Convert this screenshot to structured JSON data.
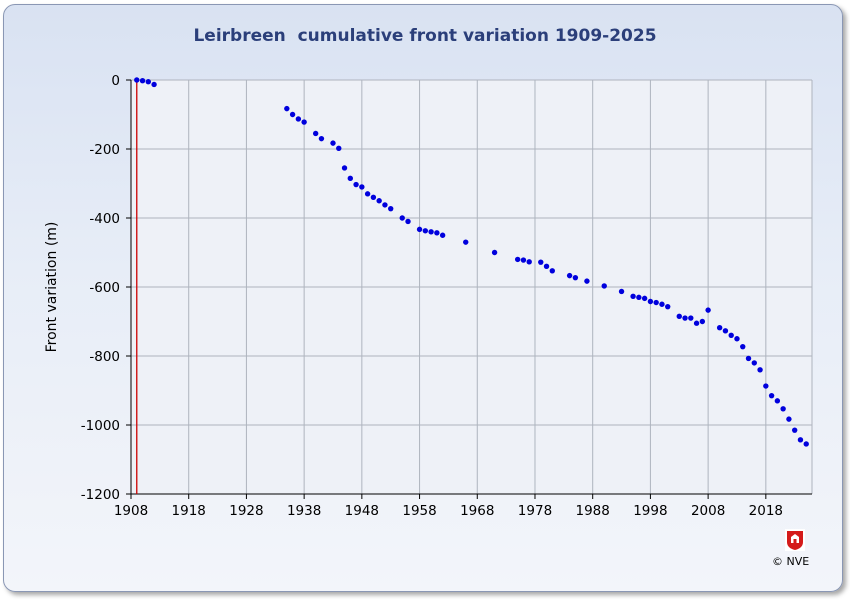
{
  "chart_data": {
    "type": "scatter",
    "title": "Leirbreen  cumulative front variation 1909-2025",
    "xlabel": "",
    "ylabel": "Front variation (m)",
    "xlim": [
      1908,
      2026
    ],
    "ylim": [
      -1200,
      0
    ],
    "x_ticks": [
      "1908",
      "1918",
      "1928",
      "1938",
      "1948",
      "1958",
      "1968",
      "1978",
      "1988",
      "1998",
      "2008",
      "2018"
    ],
    "y_ticks": [
      "0",
      "-200",
      "-400",
      "-600",
      "-800",
      "-1000",
      "-1200"
    ],
    "grid": true,
    "reference_line_x": 1909,
    "colors": {
      "points": "#0000dd",
      "reference_line": "#cc0000",
      "grid": "#aeb4be"
    },
    "series": [
      {
        "x": [
          1909,
          1910,
          1911,
          1912,
          1935,
          1936,
          1937,
          1938,
          1940,
          1941,
          1943,
          1944,
          1945,
          1946,
          1947,
          1948,
          1949,
          1950,
          1951,
          1952,
          1953,
          1955,
          1956,
          1958,
          1959,
          1960,
          1961,
          1962,
          1966,
          1971,
          1975,
          1976,
          1977,
          1979,
          1980,
          1981,
          1984,
          1985,
          1987,
          1990,
          1993,
          1995,
          1996,
          1997,
          1998,
          1999,
          2000,
          2001,
          2003,
          2004,
          2005,
          2006,
          2007,
          2008,
          2010,
          2011,
          2012,
          2013,
          2014,
          2015,
          2016,
          2017,
          2018,
          2019,
          2020,
          2021,
          2022,
          2023,
          2024,
          2025
        ],
        "y": [
          0,
          -2,
          -5,
          -13,
          -83,
          -100,
          -113,
          -122,
          -155,
          -170,
          -183,
          -198,
          -255,
          -285,
          -303,
          -310,
          -330,
          -340,
          -350,
          -362,
          -373,
          -400,
          -410,
          -433,
          -437,
          -440,
          -443,
          -450,
          -470,
          -500,
          -520,
          -522,
          -527,
          -528,
          -540,
          -553,
          -567,
          -573,
          -583,
          -597,
          -613,
          -627,
          -630,
          -633,
          -642,
          -645,
          -650,
          -657,
          -685,
          -690,
          -690,
          -705,
          -700,
          -667,
          -718,
          -727,
          -740,
          -750,
          -773,
          -807,
          -820,
          -840,
          -887,
          -915,
          -930,
          -953,
          -983,
          -1015,
          -1043,
          -1055
        ]
      }
    ]
  },
  "footer": {
    "credit": "© NVE"
  }
}
